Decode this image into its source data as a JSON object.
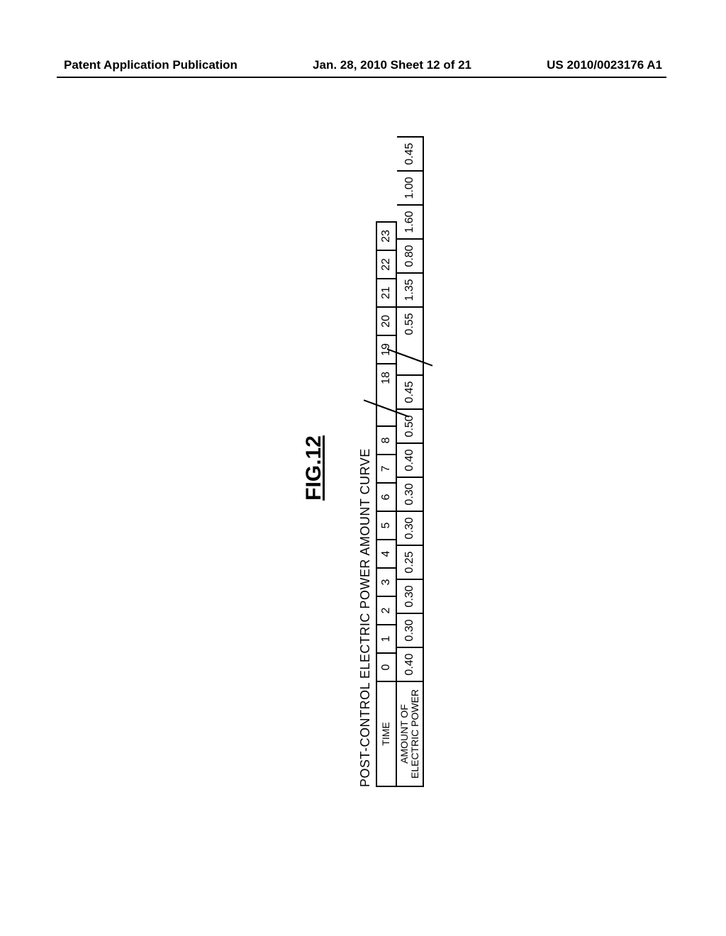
{
  "header": {
    "left": "Patent Application Publication",
    "center": "Jan. 28, 2010  Sheet 12 of 21",
    "right": "US 2010/0023176 A1"
  },
  "figure": {
    "label": "FIG.12",
    "table_title": "POST-CONTROL ELECTRIC POWER AMOUNT CURVE",
    "row_labels": {
      "time": "TIME",
      "amount_line1": "AMOUNT OF",
      "amount_line2": "ELECTRIC POWER"
    },
    "segments": [
      {
        "times": [
          "0",
          "1",
          "2",
          "3",
          "4",
          "5",
          "6",
          "7",
          "8"
        ],
        "values": [
          "0.40",
          "0.30",
          "0.30",
          "0.25",
          "0.30",
          "0.30",
          "0.40",
          "0.50",
          "0.45"
        ]
      },
      {
        "times": [
          "18",
          "19",
          "20",
          "21",
          "22",
          "23"
        ],
        "values": [
          "0.55",
          "1.35",
          "0.80",
          "1.60",
          "1.00",
          "0.45"
        ]
      }
    ],
    "style": {
      "font_family": "Arial",
      "border_color": "#000000",
      "background_color": "#ffffff",
      "fig_label_fontsize": 30,
      "table_title_fontsize": 18,
      "cell_fontsize": 16,
      "label_fontsize": 14,
      "time_cell_width": 40,
      "value_cell_width": 48,
      "label_cell_width": 150,
      "row1_height": 30,
      "row2_height": 38,
      "gap_style": "double-slash"
    }
  }
}
